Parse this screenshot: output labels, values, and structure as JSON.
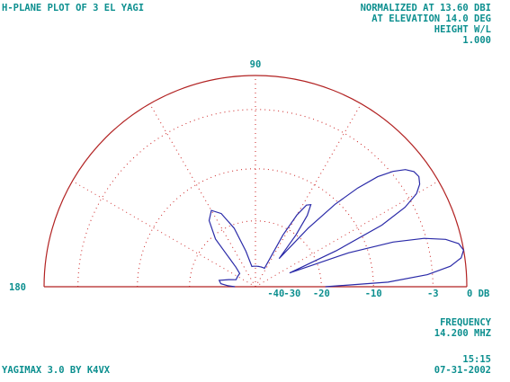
{
  "header": {
    "title": "H-PLANE PLOT OF 3 EL YAGI",
    "norm_line1": "NORMALIZED AT 13.60 DBI",
    "norm_line2": "AT ELEVATION  14.0 DEG",
    "height_label": "HEIGHT W/L",
    "height_value": "1.000"
  },
  "footer": {
    "freq_label": "FREQUENCY",
    "freq_value": "14.200 MHZ",
    "app": "YAGIMAX 3.0  BY K4VX",
    "time": "15:15",
    "date": "07-31-2002"
  },
  "colors": {
    "outline": "#b22222",
    "grid": "#cc2222",
    "pattern": "#2a2aa8",
    "text": "#0c8f8f"
  },
  "chart_data": {
    "type": "polar-halfplane",
    "title": "H-PLANE PLOT OF 3 EL YAGI",
    "angle_range_deg": [
      0,
      180
    ],
    "angle_labels": [
      "90",
      "180"
    ],
    "radial_scale_db": [
      0,
      -3,
      -10,
      -20,
      -30,
      -40
    ],
    "radial_tick_labels": [
      "-40",
      "-30",
      "-20",
      "-10",
      "-3",
      "0 DB"
    ],
    "grid": true,
    "series": [
      {
        "angle_deg": [
          0,
          2,
          4,
          6,
          8,
          10,
          12,
          14,
          16,
          18,
          20,
          22,
          24,
          26,
          28,
          30,
          32,
          34,
          36,
          38,
          40,
          42,
          44,
          46,
          48,
          50,
          52,
          54,
          56,
          58,
          60,
          62,
          64,
          66,
          68,
          70,
          72,
          74,
          76,
          78,
          80,
          82,
          84,
          86,
          88,
          90,
          95,
          100,
          105,
          110,
          115,
          120,
          125,
          130,
          135,
          140,
          145,
          150,
          155,
          160,
          165,
          170,
          175,
          178,
          180
        ],
        "db": [
          -19,
          -8,
          -3.5,
          -1.3,
          -0.3,
          0,
          -0.3,
          -1.3,
          -3.2,
          -6.5,
          -13,
          -30,
          -15,
          -7,
          -3.8,
          -2.2,
          -1.5,
          -1.2,
          -1.3,
          -1.8,
          -2.8,
          -4.3,
          -6.8,
          -10.5,
          -17,
          -30,
          -20,
          -15,
          -13,
          -13.5,
          -16,
          -22,
          -40,
          -40,
          -40,
          -40,
          -40,
          -40,
          -40,
          -40,
          -40,
          -40,
          -40,
          -40,
          -40,
          -40,
          -40,
          -40,
          -30,
          -21,
          -16.5,
          -15,
          -16.5,
          -21,
          -35,
          -40,
          -40,
          -40,
          -40,
          -40,
          -35,
          -30,
          -31,
          -35,
          -40
        ]
      }
    ]
  }
}
